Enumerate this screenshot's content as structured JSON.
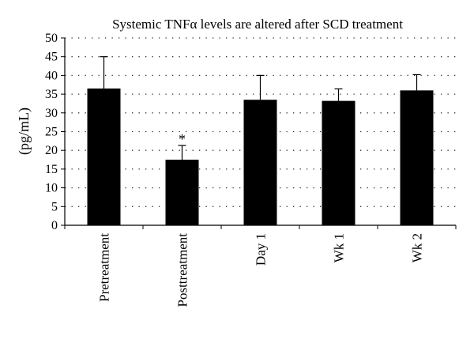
{
  "chart_data": {
    "type": "bar",
    "title": "Systemic TNFα levels are altered after SCD treatment",
    "xlabel": "",
    "ylabel": "(pg/mL)",
    "ylim": [
      0,
      50
    ],
    "yticks": [
      0,
      5,
      10,
      15,
      20,
      25,
      30,
      35,
      40,
      45,
      50
    ],
    "grid": "horizontal dotted",
    "categories": [
      "Pretreatment",
      "Posttreatment",
      "Day 1",
      "Wk 1",
      "Wk 2"
    ],
    "values": [
      36.5,
      17.5,
      33.5,
      33.2,
      36.0
    ],
    "error_upper": [
      45.0,
      21.3,
      40.0,
      36.4,
      40.2
    ],
    "annotations": [
      "",
      "*",
      "",
      "",
      ""
    ],
    "bar_color": "#000000"
  }
}
